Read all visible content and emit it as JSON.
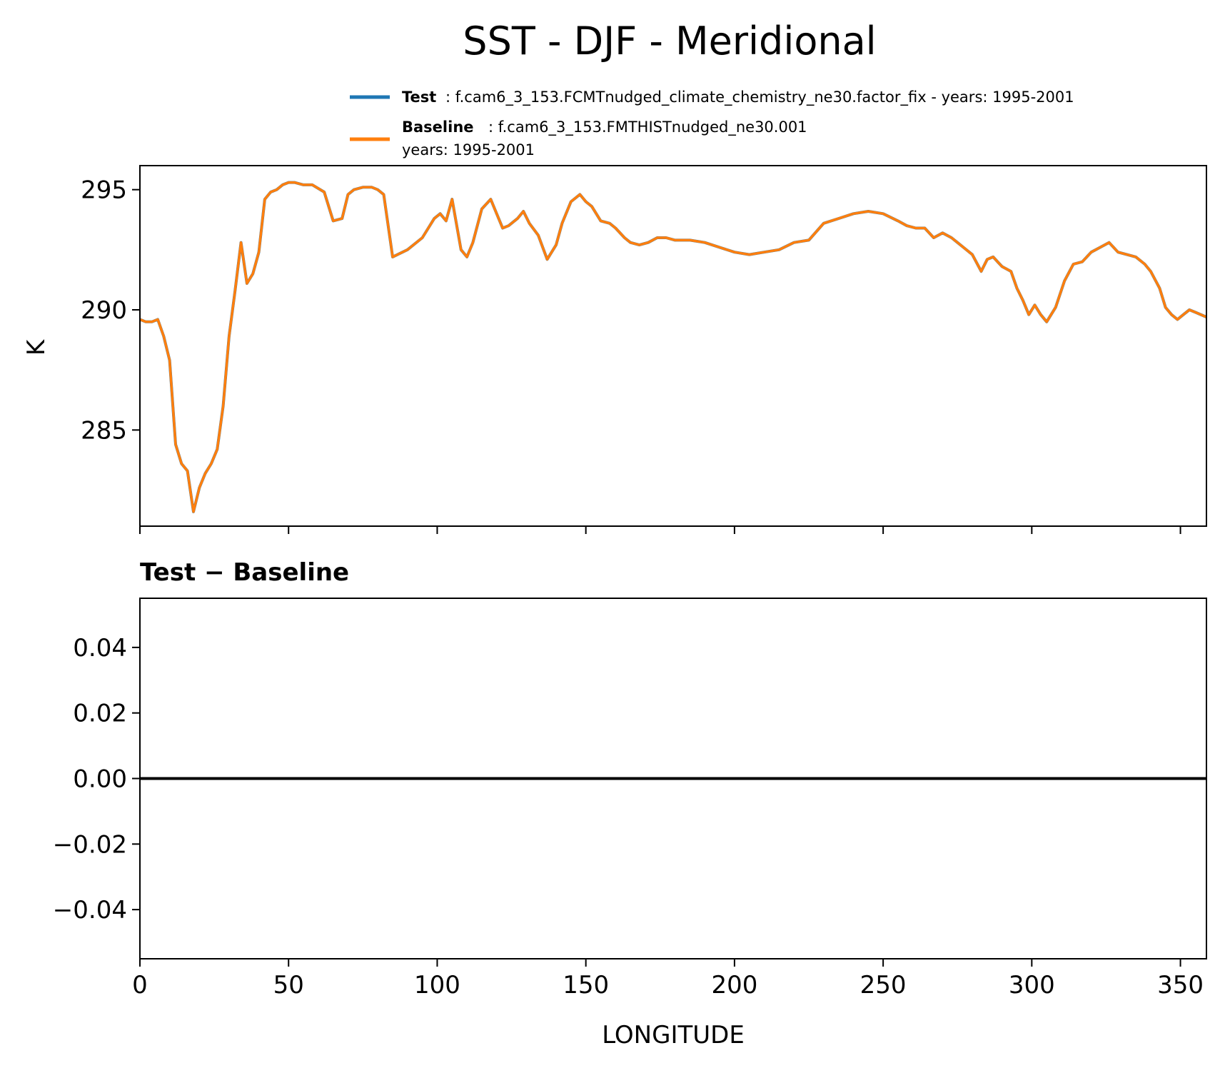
{
  "figure": {
    "title": "SST - DJF - Meridional"
  },
  "legend": {
    "entries": [
      {
        "label": "Test",
        "text": ": f.cam6_3_153.FCMTnudged_climate_chemistry_ne30.factor_fix - years: 1995-2001",
        "text2": "",
        "color": "#1f77b4"
      },
      {
        "label": "Baseline",
        "text": ": f.cam6_3_153.FMTHISTnudged_ne30.001",
        "text2": "years: 1995-2001",
        "color": "#ff7f0e"
      }
    ]
  },
  "chart_data": [
    {
      "type": "line",
      "title": "",
      "xlabel": "",
      "ylabel": "K",
      "xlim": [
        0,
        358.75
      ],
      "ylim": [
        281,
        296
      ],
      "yticks": [
        285,
        290,
        295
      ],
      "xticks": [
        0,
        50,
        100,
        150,
        200,
        250,
        300,
        350
      ],
      "xticklabels_visible": false,
      "grid": false,
      "series": [
        {
          "name": "Test",
          "color": "#1f77b4",
          "x": [
            0,
            2,
            4,
            6,
            8,
            10,
            12,
            14,
            16,
            18,
            20,
            22,
            24,
            26,
            28,
            30,
            32,
            34,
            36,
            38,
            40,
            42,
            44,
            46,
            48,
            50,
            52,
            55,
            58,
            62,
            65,
            68,
            70,
            72,
            75,
            78,
            80,
            82,
            85,
            90,
            95,
            97,
            99,
            101,
            103,
            105,
            108,
            110,
            112,
            115,
            118,
            120,
            122,
            124,
            127,
            129,
            131,
            134,
            137,
            140,
            142,
            145,
            148,
            150,
            152,
            155,
            158,
            160,
            163,
            165,
            168,
            171,
            174,
            177,
            180,
            185,
            190,
            195,
            200,
            205,
            210,
            215,
            220,
            225,
            230,
            235,
            240,
            245,
            250,
            255,
            258,
            261,
            264,
            267,
            270,
            273,
            275,
            277,
            280,
            283,
            285,
            287,
            290,
            293,
            295,
            297,
            299,
            301,
            303,
            305,
            308,
            311,
            314,
            317,
            320,
            323,
            326,
            329,
            332,
            335,
            338,
            340,
            343,
            345,
            347,
            349,
            351,
            353,
            355,
            358.75
          ],
          "y": [
            289.6,
            289.5,
            289.5,
            289.6,
            288.9,
            287.9,
            284.4,
            283.6,
            283.3,
            281.6,
            282.6,
            283.2,
            283.6,
            284.2,
            286.0,
            288.9,
            290.8,
            292.8,
            291.1,
            291.5,
            292.4,
            294.6,
            294.9,
            295.0,
            295.2,
            295.3,
            295.3,
            295.2,
            295.2,
            294.9,
            293.7,
            293.8,
            294.8,
            295.0,
            295.1,
            295.1,
            295.0,
            294.8,
            292.2,
            292.5,
            293.0,
            293.4,
            293.8,
            294.0,
            293.7,
            294.6,
            292.5,
            292.2,
            292.8,
            294.2,
            294.6,
            294.0,
            293.4,
            293.5,
            293.8,
            294.1,
            293.6,
            293.1,
            292.1,
            292.7,
            293.6,
            294.5,
            294.8,
            294.5,
            294.3,
            293.7,
            293.6,
            293.4,
            293.0,
            292.8,
            292.7,
            292.8,
            293.0,
            293.0,
            292.9,
            292.9,
            292.8,
            292.6,
            292.4,
            292.3,
            292.4,
            292.5,
            292.8,
            292.9,
            293.6,
            293.8,
            294.0,
            294.1,
            294.0,
            293.7,
            293.5,
            293.4,
            293.4,
            293.0,
            293.2,
            293.0,
            292.8,
            292.6,
            292.3,
            291.6,
            292.1,
            292.2,
            291.8,
            291.6,
            290.9,
            290.4,
            289.8,
            290.2,
            289.8,
            289.5,
            290.1,
            291.2,
            291.9,
            292.0,
            292.4,
            292.6,
            292.8,
            292.4,
            292.3,
            292.2,
            291.9,
            291.6,
            290.9,
            290.1,
            289.8,
            289.6,
            289.8,
            290.0,
            289.9,
            289.7
          ]
        },
        {
          "name": "Baseline",
          "color": "#ff7f0e",
          "x": [
            0,
            2,
            4,
            6,
            8,
            10,
            12,
            14,
            16,
            18,
            20,
            22,
            24,
            26,
            28,
            30,
            32,
            34,
            36,
            38,
            40,
            42,
            44,
            46,
            48,
            50,
            52,
            55,
            58,
            62,
            65,
            68,
            70,
            72,
            75,
            78,
            80,
            82,
            85,
            90,
            95,
            97,
            99,
            101,
            103,
            105,
            108,
            110,
            112,
            115,
            118,
            120,
            122,
            124,
            127,
            129,
            131,
            134,
            137,
            140,
            142,
            145,
            148,
            150,
            152,
            155,
            158,
            160,
            163,
            165,
            168,
            171,
            174,
            177,
            180,
            185,
            190,
            195,
            200,
            205,
            210,
            215,
            220,
            225,
            230,
            235,
            240,
            245,
            250,
            255,
            258,
            261,
            264,
            267,
            270,
            273,
            275,
            277,
            280,
            283,
            285,
            287,
            290,
            293,
            295,
            297,
            299,
            301,
            303,
            305,
            308,
            311,
            314,
            317,
            320,
            323,
            326,
            329,
            332,
            335,
            338,
            340,
            343,
            345,
            347,
            349,
            351,
            353,
            355,
            358.75
          ],
          "y": [
            289.6,
            289.5,
            289.5,
            289.6,
            288.9,
            287.9,
            284.4,
            283.6,
            283.3,
            281.6,
            282.6,
            283.2,
            283.6,
            284.2,
            286.0,
            288.9,
            290.8,
            292.8,
            291.1,
            291.5,
            292.4,
            294.6,
            294.9,
            295.0,
            295.2,
            295.3,
            295.3,
            295.2,
            295.2,
            294.9,
            293.7,
            293.8,
            294.8,
            295.0,
            295.1,
            295.1,
            295.0,
            294.8,
            292.2,
            292.5,
            293.0,
            293.4,
            293.8,
            294.0,
            293.7,
            294.6,
            292.5,
            292.2,
            292.8,
            294.2,
            294.6,
            294.0,
            293.4,
            293.5,
            293.8,
            294.1,
            293.6,
            293.1,
            292.1,
            292.7,
            293.6,
            294.5,
            294.8,
            294.5,
            294.3,
            293.7,
            293.6,
            293.4,
            293.0,
            292.8,
            292.7,
            292.8,
            293.0,
            293.0,
            292.9,
            292.9,
            292.8,
            292.6,
            292.4,
            292.3,
            292.4,
            292.5,
            292.8,
            292.9,
            293.6,
            293.8,
            294.0,
            294.1,
            294.0,
            293.7,
            293.5,
            293.4,
            293.4,
            293.0,
            293.2,
            293.0,
            292.8,
            292.6,
            292.3,
            291.6,
            292.1,
            292.2,
            291.8,
            291.6,
            290.9,
            290.4,
            289.8,
            290.2,
            289.8,
            289.5,
            290.1,
            291.2,
            291.9,
            292.0,
            292.4,
            292.6,
            292.8,
            292.4,
            292.3,
            292.2,
            291.9,
            291.6,
            290.9,
            290.1,
            289.8,
            289.6,
            289.8,
            290.0,
            289.9,
            289.7
          ]
        }
      ]
    },
    {
      "type": "line",
      "title": "Test − Baseline",
      "xlabel": "LONGITUDE",
      "ylabel": "",
      "xlim": [
        0,
        358.75
      ],
      "ylim": [
        -0.055,
        0.055
      ],
      "yticks": [
        0.04,
        0.02,
        0.0,
        -0.02,
        -0.04
      ],
      "yticklabels": [
        "0.04",
        "0.02",
        "0.00",
        "−0.02",
        "−0.04"
      ],
      "xticks": [
        0,
        50,
        100,
        150,
        200,
        250,
        300,
        350
      ],
      "xticklabels": [
        "0",
        "50",
        "100",
        "150",
        "200",
        "250",
        "300",
        "350"
      ],
      "grid": false,
      "series": [
        {
          "name": "",
          "color": "#000000",
          "x": [
            0,
            358.75
          ],
          "y": [
            0,
            0
          ]
        }
      ]
    }
  ]
}
